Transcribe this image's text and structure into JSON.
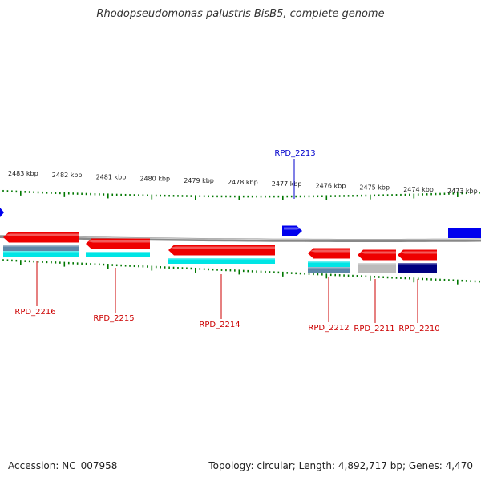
{
  "title": "Rhodopseudomonas palustris BisB5, complete genome",
  "accession_label": "Accession: NC_007958",
  "summary_label": "Topology: circular; Length: 4,892,717 bp; Genes: 4,470",
  "colors": {
    "forward_gene": "#0000ee",
    "reverse_gene": "#ee0000",
    "tick": "#007700",
    "backbone": "#888888",
    "reverse_label": "#cc0000",
    "forward_label": "#0000cc",
    "cyan_track": "#00e5e5",
    "steel_track": "#5f87a8",
    "gray_track": "#bbbbbb",
    "navy_track": "#000080"
  },
  "kbp_ticks": [
    {
      "label": "2483 kbp"
    },
    {
      "label": "2482 kbp"
    },
    {
      "label": "2481 kbp"
    },
    {
      "label": "2480 kbp"
    },
    {
      "label": "2479 kbp"
    },
    {
      "label": "2478 kbp"
    },
    {
      "label": "2477 kbp"
    },
    {
      "label": "2476 kbp"
    },
    {
      "label": "2475 kbp"
    },
    {
      "label": "2474 kbp"
    },
    {
      "label": "2473 kbp"
    }
  ],
  "genes": [
    {
      "label": "RPD_2216",
      "strand": "-",
      "tracks": [
        "steel",
        "cyan"
      ]
    },
    {
      "label": "RPD_2215",
      "strand": "-",
      "tracks": [
        "cyan"
      ]
    },
    {
      "label": "RPD_2214",
      "strand": "-",
      "tracks": [
        "cyan"
      ]
    },
    {
      "label": "RPD_2213",
      "strand": "+",
      "tracks": []
    },
    {
      "label": "RPD_2212",
      "strand": "-",
      "tracks": [
        "cyan",
        "steel"
      ]
    },
    {
      "label": "RPD_2211",
      "strand": "-",
      "tracks": [
        "gray"
      ]
    },
    {
      "label": "RPD_2210",
      "strand": "-",
      "tracks": [
        "navy"
      ]
    }
  ]
}
